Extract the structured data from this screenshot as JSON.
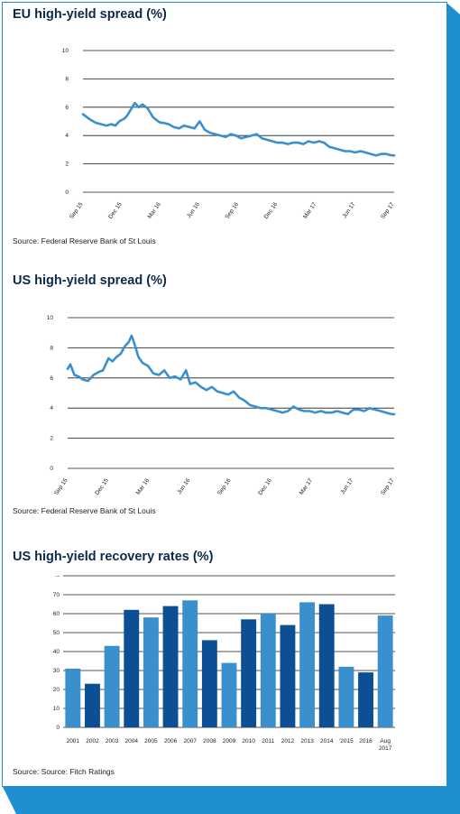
{
  "colors": {
    "accent": "#1e8fd0",
    "line": "#3a8fcd",
    "bar_light": "#3a8fcd",
    "bar_dark": "#0d4f95",
    "title": "#0b2a4a"
  },
  "chart_data": [
    {
      "type": "line",
      "title": "EU high-yield spread (%)",
      "source": "Source: Federal Reserve Bank of St Louis",
      "ylim": [
        0,
        10
      ],
      "yticks": [
        "0",
        "2",
        "4",
        "6",
        "8",
        "10"
      ],
      "xticks": [
        "Sep 15",
        "Dec 15",
        "Mar 16",
        "Jun 16",
        "Sep 16",
        "Dec 16",
        "Mar 17",
        "Jun 17",
        "Sep 17"
      ],
      "grid": true,
      "series": [
        {
          "x": [
            0,
            0.3,
            0.6,
            1.0,
            1.4,
            1.8,
            2.2,
            2.5,
            2.8,
            3.0,
            3.2,
            3.4,
            3.6,
            3.8,
            4.0,
            4.3,
            4.6,
            5.0,
            5.4,
            5.8,
            6.0,
            6.2,
            6.6,
            7.0,
            7.4,
            7.8,
            8.2,
            8.6,
            9.0,
            9.4,
            9.8,
            10.2,
            10.6,
            11.0,
            11.4,
            11.8,
            12.2,
            12.6,
            13.0,
            13.4,
            13.8,
            14.2,
            14.6,
            15.0,
            15.4,
            15.8,
            16.2,
            16.6,
            17.0,
            17.4,
            17.8,
            18.2,
            18.6,
            19.0,
            19.4,
            19.8,
            20.2,
            20.6,
            21.0,
            21.4,
            21.8,
            22.2,
            22.6,
            23.0,
            23.4,
            23.8,
            24.0
          ],
          "y": [
            5.5,
            5.3,
            5.1,
            4.9,
            4.8,
            4.7,
            4.8,
            4.7,
            5.0,
            5.1,
            5.2,
            5.4,
            5.7,
            6.0,
            6.3,
            6.0,
            6.2,
            5.9,
            5.3,
            5.0,
            4.9,
            4.9,
            4.8,
            4.6,
            4.5,
            4.7,
            4.6,
            4.5,
            5.0,
            4.4,
            4.2,
            4.1,
            4.0,
            3.9,
            4.1,
            4.0,
            3.8,
            3.9,
            4.0,
            4.1,
            3.8,
            3.7,
            3.6,
            3.5,
            3.5,
            3.4,
            3.5,
            3.5,
            3.4,
            3.6,
            3.5,
            3.6,
            3.5,
            3.2,
            3.1,
            3.0,
            2.9,
            2.9,
            2.8,
            2.9,
            2.8,
            2.7,
            2.6,
            2.7,
            2.7,
            2.6,
            2.6
          ]
        }
      ]
    },
    {
      "type": "line",
      "title": "US high-yield spread (%)",
      "source": "Source: Federal Reserve Bank of St Louis",
      "ylim": [
        0,
        10
      ],
      "yticks": [
        "0",
        "2",
        "4",
        "6",
        "8",
        "10"
      ],
      "xticks": [
        "Sep 15",
        "Dec 15",
        "Mar 16",
        "Jun 16",
        "Sep 16",
        "Dec 16",
        "Mar 17",
        "Jun 17",
        "Sep 17"
      ],
      "grid": true,
      "series": [
        {
          "x": [
            0,
            0.2,
            0.5,
            0.8,
            1.1,
            1.5,
            1.9,
            2.3,
            2.6,
            3.0,
            3.3,
            3.6,
            3.9,
            4.2,
            4.5,
            4.7,
            4.9,
            5.2,
            5.5,
            5.9,
            6.3,
            6.7,
            7.1,
            7.5,
            7.9,
            8.3,
            8.7,
            9.0,
            9.4,
            9.8,
            10.2,
            10.6,
            11.0,
            11.4,
            11.8,
            12.2,
            12.6,
            13.0,
            13.4,
            13.8,
            14.2,
            14.6,
            15.0,
            15.4,
            15.8,
            16.2,
            16.6,
            17.0,
            17.4,
            17.8,
            18.2,
            18.6,
            19.0,
            19.4,
            19.8,
            20.2,
            20.6,
            21.0,
            21.4,
            21.8,
            22.2,
            22.6,
            23.0,
            23.4,
            23.8,
            24.0
          ],
          "y": [
            6.6,
            6.9,
            6.2,
            6.1,
            5.9,
            5.8,
            6.2,
            6.4,
            6.5,
            7.3,
            7.1,
            7.4,
            7.6,
            8.1,
            8.4,
            8.8,
            8.3,
            7.4,
            7.0,
            6.8,
            6.3,
            6.2,
            6.5,
            6.0,
            6.1,
            5.9,
            6.5,
            5.6,
            5.7,
            5.4,
            5.2,
            5.4,
            5.1,
            5.0,
            4.9,
            5.1,
            4.7,
            4.5,
            4.2,
            4.1,
            4.0,
            4.0,
            3.9,
            3.8,
            3.7,
            3.8,
            4.1,
            3.9,
            3.8,
            3.8,
            3.7,
            3.8,
            3.7,
            3.7,
            3.8,
            3.7,
            3.6,
            3.9,
            3.9,
            3.8,
            4.0,
            3.9,
            3.8,
            3.7,
            3.6,
            3.6
          ]
        }
      ]
    },
    {
      "type": "bar",
      "title": "US high-yield recovery rates (%)",
      "source": "Source: Source: Fitch Ratings",
      "ylim": [
        0,
        80
      ],
      "yticks": [
        "0",
        "10",
        "20",
        "30",
        "40",
        "50",
        "60",
        "70",
        "--"
      ],
      "categories": [
        "2001",
        "2002",
        "2003",
        "2004",
        "2005",
        "2006",
        "2007",
        "2008",
        "2009",
        "2010",
        "2011",
        "2012",
        "2013",
        "2014",
        "'2015",
        "2016",
        "Aug 2017"
      ],
      "values": [
        31,
        23,
        43,
        62,
        58,
        64,
        67,
        46,
        34,
        57,
        60,
        54,
        66,
        65,
        32,
        29,
        59
      ],
      "bar_colors": [
        "#3a8fcd",
        "#0d4f95",
        "#3a8fcd",
        "#0d4f95",
        "#3a8fcd",
        "#0d4f95",
        "#3a8fcd",
        "#0d4f95",
        "#3a8fcd",
        "#0d4f95",
        "#3a8fcd",
        "#0d4f95",
        "#3a8fcd",
        "#0d4f95",
        "#3a8fcd",
        "#0d4f95",
        "#3a8fcd"
      ],
      "grid": true
    }
  ]
}
